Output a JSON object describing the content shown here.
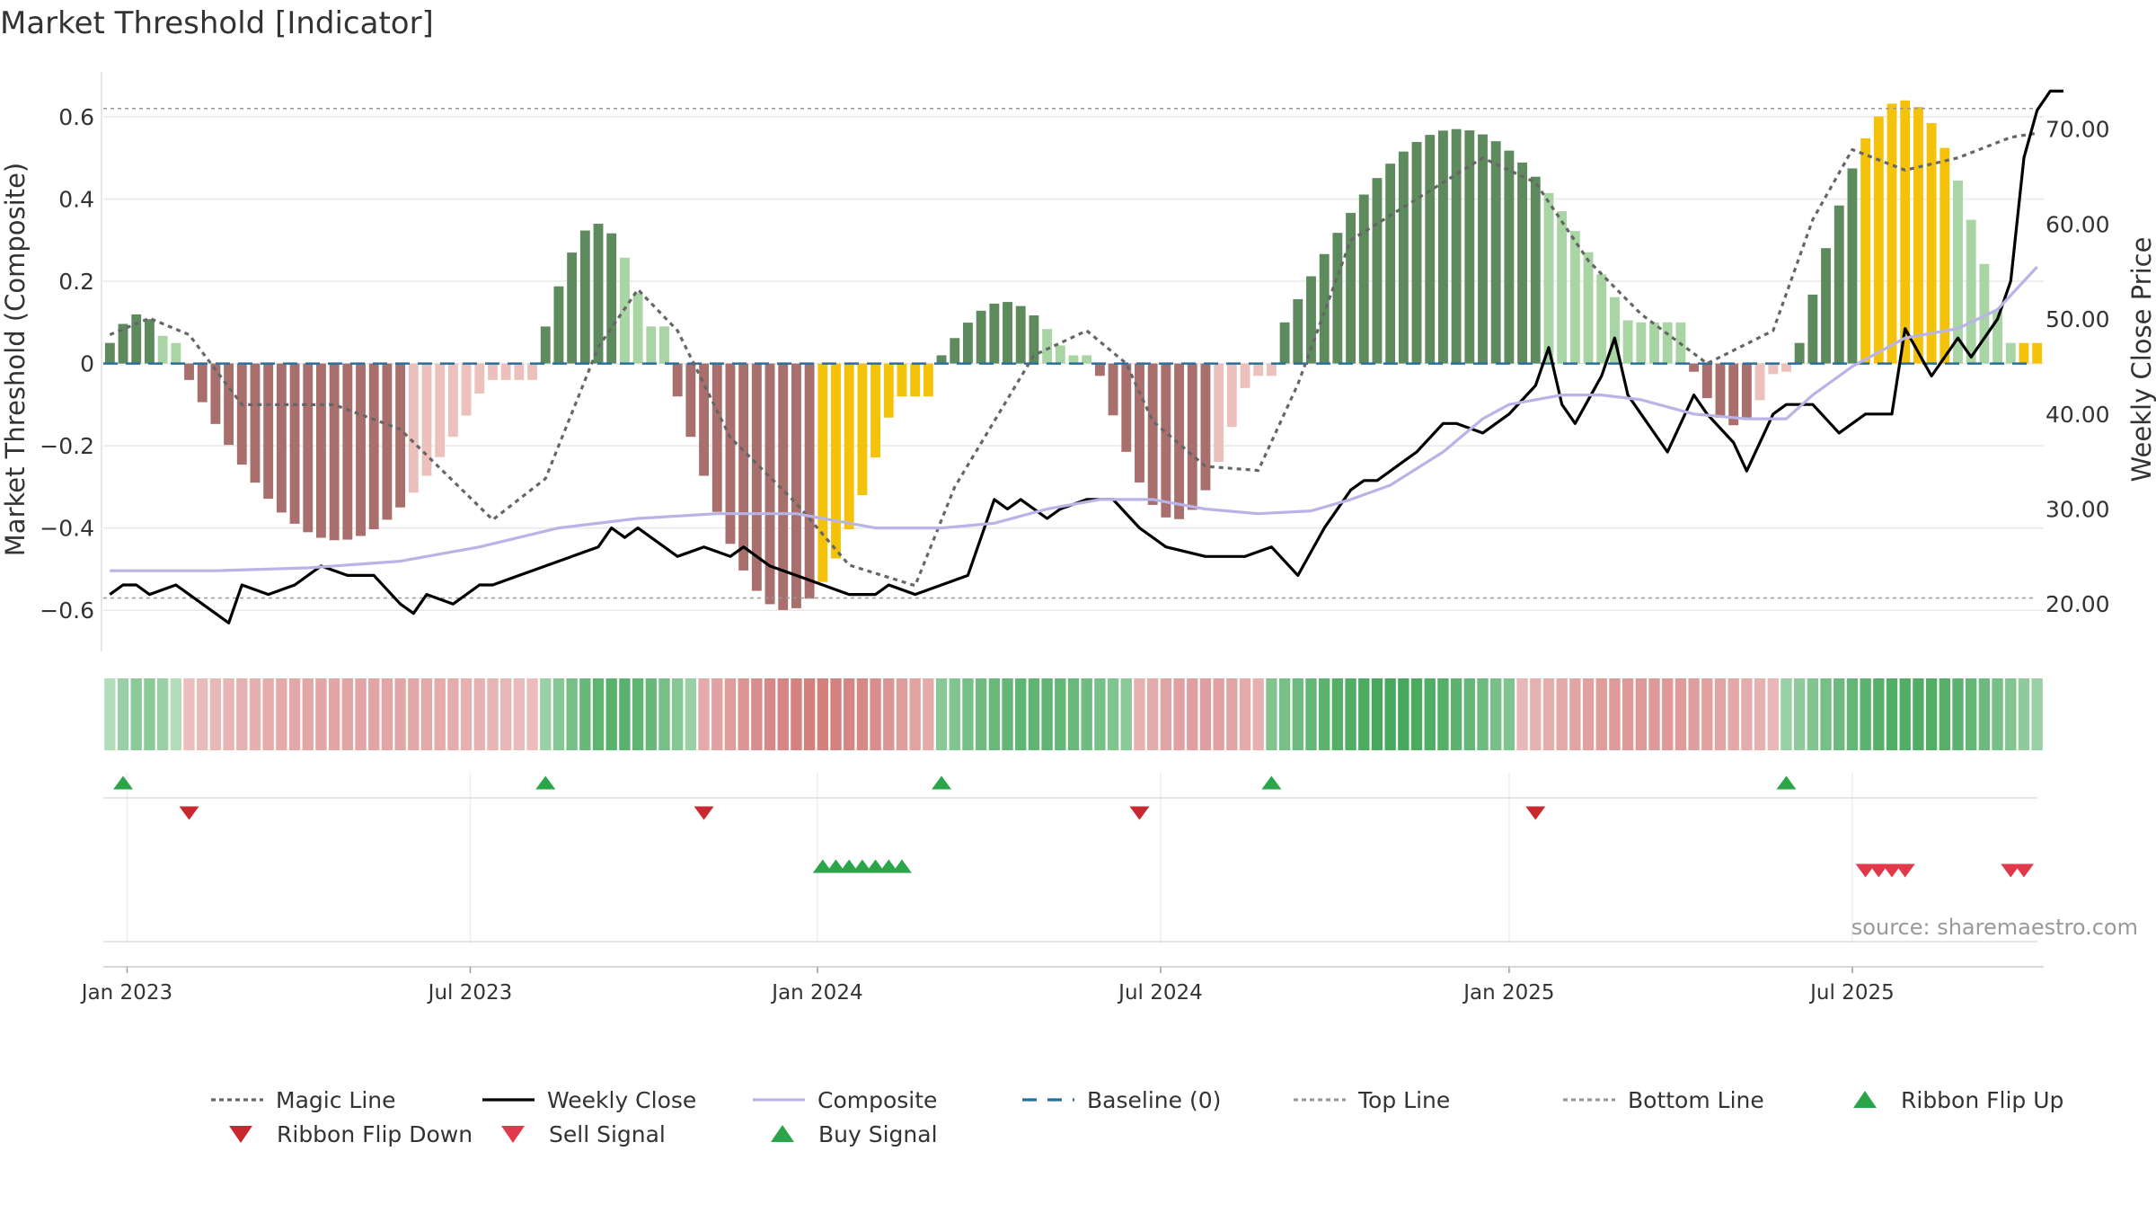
{
  "chart_data": {
    "type": "bar",
    "title": "Market Threshold [Indicator]",
    "ylabel_left": "Market Threshold (Composite)",
    "ylabel_right": "Weekly Close Price",
    "ylim_left": [
      -0.7,
      0.72
    ],
    "ylim_right": [
      15.0,
      76.5
    ],
    "yticks_left": [
      0.6,
      0.4,
      0.2,
      0,
      -0.2,
      -0.4,
      -0.6
    ],
    "yticks_left_labels": [
      "0.6",
      "0.4",
      "0.2",
      "0",
      "−0.2",
      "−0.4",
      "−0.6"
    ],
    "yticks_right": [
      70,
      60,
      50,
      40,
      30,
      20
    ],
    "yticks_right_labels": [
      "70.00",
      "60.00",
      "50.00",
      "40.00",
      "30.00",
      "20.00"
    ],
    "x_weeks": 147,
    "x_ticks": [
      {
        "week": 1.3,
        "label": "Jan 2023"
      },
      {
        "week": 27.3,
        "label": "Jul 2023"
      },
      {
        "week": 53.6,
        "label": "Jan 2024"
      },
      {
        "week": 79.6,
        "label": "Jul 2024"
      },
      {
        "week": 106,
        "label": "Jan 2025"
      },
      {
        "week": 132,
        "label": "Jul 2025"
      }
    ],
    "top_line": 0.62,
    "bottom_line": -0.57,
    "baseline": 0,
    "bars_phases": [
      {
        "start": 0,
        "end": 6,
        "a": 0.05,
        "b": 0.12,
        "dir": "up"
      },
      {
        "start": 6,
        "end": 33,
        "a": -0.04,
        "b": -0.43,
        "dir": "dn"
      },
      {
        "start": 33,
        "end": 43,
        "a": 0.09,
        "b": 0.34,
        "dir": "up"
      },
      {
        "start": 43,
        "end": 63,
        "a": -0.08,
        "b": -0.6,
        "dir": "dn"
      },
      {
        "start": 63,
        "end": 75,
        "a": 0.02,
        "b": 0.15,
        "dir": "up"
      },
      {
        "start": 75,
        "end": 89,
        "a": -0.03,
        "b": -0.38,
        "dir": "dn"
      },
      {
        "start": 89,
        "end": 120,
        "a": 0.1,
        "b": 0.57,
        "dir": "up"
      },
      {
        "start": 120,
        "end": 128,
        "a": -0.02,
        "b": -0.15,
        "dir": "dn"
      },
      {
        "start": 128,
        "end": 147,
        "a": 0.05,
        "b": 0.64,
        "dir": "up"
      }
    ],
    "extreme_bars_gold": [
      [
        54,
        62
      ],
      [
        133,
        139
      ],
      [
        145,
        146
      ]
    ],
    "series": [
      {
        "name": "Magic Line",
        "axis": "left",
        "style": "dotted",
        "points": [
          [
            0,
            0.07
          ],
          [
            3,
            0.11
          ],
          [
            6,
            0.07
          ],
          [
            10,
            -0.1
          ],
          [
            17,
            -0.1
          ],
          [
            22,
            -0.16
          ],
          [
            29,
            -0.38
          ],
          [
            33,
            -0.28
          ],
          [
            37,
            0.04
          ],
          [
            40,
            0.18
          ],
          [
            43,
            0.08
          ],
          [
            47,
            -0.18
          ],
          [
            52,
            -0.34
          ],
          [
            56,
            -0.49
          ],
          [
            61,
            -0.54
          ],
          [
            64,
            -0.3
          ],
          [
            67,
            -0.14
          ],
          [
            70,
            0.02
          ],
          [
            74,
            0.08
          ],
          [
            77,
            0.0
          ],
          [
            79,
            -0.14
          ],
          [
            83,
            -0.25
          ],
          [
            87,
            -0.26
          ],
          [
            90,
            -0.05
          ],
          [
            94,
            0.3
          ],
          [
            99,
            0.4
          ],
          [
            104,
            0.5
          ],
          [
            108,
            0.44
          ],
          [
            112,
            0.25
          ],
          [
            116,
            0.12
          ],
          [
            121,
            0.0
          ],
          [
            126,
            0.08
          ],
          [
            129,
            0.35
          ],
          [
            132,
            0.52
          ],
          [
            136,
            0.47
          ],
          [
            140,
            0.5
          ],
          [
            144,
            0.55
          ],
          [
            146,
            0.56
          ]
        ]
      },
      {
        "name": "Weekly Close",
        "axis": "right",
        "style": "solid",
        "points": [
          [
            0,
            21
          ],
          [
            1,
            22
          ],
          [
            2,
            22
          ],
          [
            3,
            21
          ],
          [
            5,
            22
          ],
          [
            6,
            21
          ],
          [
            8,
            19
          ],
          [
            9,
            18
          ],
          [
            10,
            22
          ],
          [
            12,
            21
          ],
          [
            14,
            22
          ],
          [
            16,
            24
          ],
          [
            18,
            23
          ],
          [
            20,
            23
          ],
          [
            22,
            20
          ],
          [
            23,
            19
          ],
          [
            24,
            21
          ],
          [
            26,
            20
          ],
          [
            28,
            22
          ],
          [
            29,
            22
          ],
          [
            31,
            23
          ],
          [
            33,
            24
          ],
          [
            35,
            25
          ],
          [
            37,
            26
          ],
          [
            38,
            28
          ],
          [
            39,
            27
          ],
          [
            40,
            28
          ],
          [
            41,
            27
          ],
          [
            43,
            25
          ],
          [
            45,
            26
          ],
          [
            47,
            25
          ],
          [
            48,
            26
          ],
          [
            50,
            24
          ],
          [
            52,
            23
          ],
          [
            54,
            22
          ],
          [
            56,
            21
          ],
          [
            58,
            21
          ],
          [
            59,
            22
          ],
          [
            61,
            21
          ],
          [
            63,
            22
          ],
          [
            65,
            23
          ],
          [
            67,
            31
          ],
          [
            68,
            30
          ],
          [
            69,
            31
          ],
          [
            71,
            29
          ],
          [
            72,
            30
          ],
          [
            74,
            31
          ],
          [
            76,
            31
          ],
          [
            78,
            28
          ],
          [
            80,
            26
          ],
          [
            83,
            25
          ],
          [
            86,
            25
          ],
          [
            88,
            26
          ],
          [
            90,
            23
          ],
          [
            92,
            28
          ],
          [
            94,
            32
          ],
          [
            95,
            33
          ],
          [
            96,
            33
          ],
          [
            98,
            35
          ],
          [
            99,
            36
          ],
          [
            101,
            39
          ],
          [
            102,
            39
          ],
          [
            104,
            38
          ],
          [
            106,
            40
          ],
          [
            108,
            43
          ],
          [
            109,
            47
          ],
          [
            110,
            41
          ],
          [
            111,
            39
          ],
          [
            113,
            44
          ],
          [
            114,
            48
          ],
          [
            115,
            42
          ],
          [
            116,
            40
          ],
          [
            118,
            36
          ],
          [
            120,
            42
          ],
          [
            121,
            40
          ],
          [
            123,
            37
          ],
          [
            124,
            34
          ],
          [
            126,
            40
          ],
          [
            127,
            41
          ],
          [
            129,
            41
          ],
          [
            131,
            38
          ],
          [
            133,
            40
          ],
          [
            135,
            40
          ],
          [
            136,
            49
          ],
          [
            138,
            44
          ],
          [
            140,
            48
          ],
          [
            141,
            46
          ],
          [
            143,
            50
          ],
          [
            144,
            54
          ],
          [
            145,
            67
          ],
          [
            146,
            72
          ],
          [
            147,
            74
          ],
          [
            148,
            74
          ]
        ],
        "y_scale_note": "price values in Weekly Close Price axis units (approx)"
      },
      {
        "name": "Composite",
        "axis": "right",
        "style": "solid",
        "points": [
          [
            0,
            23.5
          ],
          [
            8,
            23.5
          ],
          [
            15,
            23.8
          ],
          [
            22,
            24.5
          ],
          [
            28,
            26
          ],
          [
            34,
            28
          ],
          [
            40,
            29
          ],
          [
            46,
            29.5
          ],
          [
            52,
            29.5
          ],
          [
            58,
            28
          ],
          [
            63,
            28
          ],
          [
            67,
            28.5
          ],
          [
            71,
            30
          ],
          [
            75,
            31
          ],
          [
            79,
            31
          ],
          [
            83,
            30
          ],
          [
            87,
            29.5
          ],
          [
            91,
            29.8
          ],
          [
            94,
            31
          ],
          [
            97,
            32.5
          ],
          [
            101,
            36
          ],
          [
            104,
            39.5
          ],
          [
            106,
            41
          ],
          [
            108,
            41.5
          ],
          [
            110,
            42
          ],
          [
            113,
            42
          ],
          [
            116,
            41.5
          ],
          [
            120,
            40
          ],
          [
            124,
            39.5
          ],
          [
            127,
            39.5
          ],
          [
            129,
            42
          ],
          [
            132,
            45
          ],
          [
            136,
            48
          ],
          [
            140,
            49
          ],
          [
            143,
            51
          ],
          [
            146,
            55.5
          ]
        ]
      }
    ],
    "ribbon_tone_note": "state per week: negative = red tones, positive = green tones, magnitude 0-1",
    "ribbon": [
      {
        "start": 0,
        "end": 6,
        "sign": "up",
        "from": 0.3,
        "to": 0.55
      },
      {
        "start": 6,
        "end": 33,
        "sign": "dn",
        "from": 0.25,
        "to": 0.45
      },
      {
        "start": 33,
        "end": 45,
        "sign": "up",
        "from": 0.45,
        "to": 0.85
      },
      {
        "start": 45,
        "end": 63,
        "sign": "dn",
        "from": 0.4,
        "to": 0.75
      },
      {
        "start": 63,
        "end": 78,
        "sign": "up",
        "from": 0.55,
        "to": 0.8
      },
      {
        "start": 78,
        "end": 88,
        "sign": "dn",
        "from": 0.35,
        "to": 0.5
      },
      {
        "start": 88,
        "end": 107,
        "sign": "up",
        "from": 0.6,
        "to": 0.95
      },
      {
        "start": 107,
        "end": 127,
        "sign": "dn",
        "from": 0.3,
        "to": 0.55
      },
      {
        "start": 127,
        "end": 147,
        "sign": "up",
        "from": 0.45,
        "to": 0.9
      }
    ],
    "ribbon_flip_up_weeks": [
      1,
      33,
      63,
      88,
      127
    ],
    "ribbon_flip_down_weeks": [
      6,
      45,
      78,
      108
    ],
    "buy_signal_weeks": [
      54,
      55,
      56,
      57,
      58,
      59,
      60
    ],
    "sell_signal_weeks": [
      133,
      134,
      135,
      136,
      144,
      145
    ],
    "legend": [
      {
        "label": "Magic Line",
        "kind": "dotted-line",
        "color": "#666666"
      },
      {
        "label": "Weekly Close",
        "kind": "solid-line",
        "color": "#000000"
      },
      {
        "label": "Composite",
        "kind": "solid-line",
        "color": "#b9b4e6"
      },
      {
        "label": "Baseline (0)",
        "kind": "dashed-line",
        "color": "#2a6e9c"
      },
      {
        "label": "Top Line",
        "kind": "dotted-line",
        "color": "#9a9a9a"
      },
      {
        "label": "Bottom Line",
        "kind": "dotted-line",
        "color": "#9a9a9a"
      },
      {
        "label": "Ribbon Flip Up",
        "kind": "triangle-up",
        "color": "#2ca44a"
      },
      {
        "label": "Ribbon Flip Down",
        "kind": "triangle-down",
        "color": "#c9282e"
      },
      {
        "label": "Sell Signal",
        "kind": "triangle-down",
        "color": "#e0394a"
      },
      {
        "label": "Buy Signal",
        "kind": "triangle-up",
        "color": "#2ca44a"
      }
    ],
    "source": "source: sharemaestro.com",
    "colors": {
      "bar_up_strong": "#5e8b5e",
      "bar_up_light": "#a9d4a3",
      "bar_dn_strong": "#a86f6c",
      "bar_dn_light": "#edc1bb",
      "bar_gold": "#f5c20a",
      "baseline": "#2a6e9c",
      "grid": "#e8e8e8"
    }
  }
}
